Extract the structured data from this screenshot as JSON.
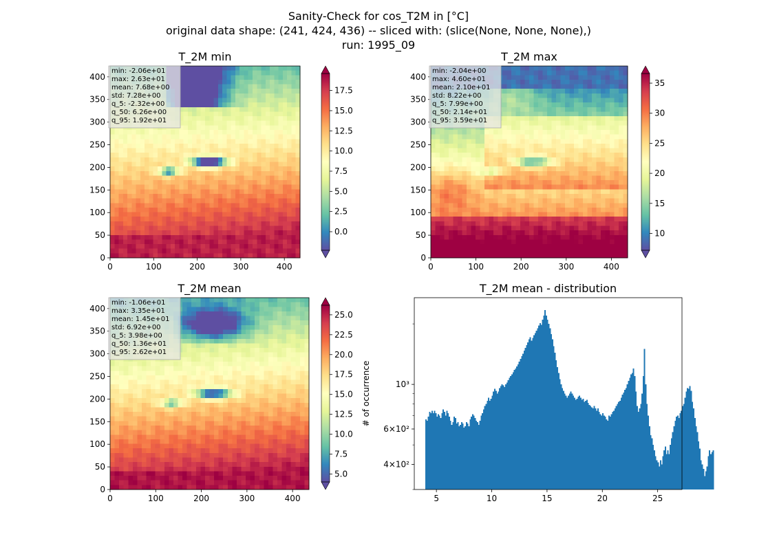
{
  "figure": {
    "title_lines": [
      "Sanity-Check for cos_T2M in [°C]",
      "original data shape: (241, 424, 436) -- sliced with: (slice(None, None, None),)",
      "run: 1995_09"
    ]
  },
  "colormap": {
    "name": "Spectral_r",
    "stops": [
      "#5e4fa2",
      "#3288bd",
      "#66c2a5",
      "#abdda4",
      "#e6f598",
      "#ffffbf",
      "#fee08b",
      "#fdae61",
      "#f46d43",
      "#d53e4f",
      "#9e0142"
    ]
  },
  "chart_data": [
    {
      "type": "heatmap",
      "title": "T_2M min",
      "xlim": [
        0,
        436
      ],
      "ylim": [
        0,
        424
      ],
      "xticks": [
        0,
        100,
        200,
        300,
        400
      ],
      "yticks": [
        0,
        50,
        100,
        150,
        200,
        250,
        300,
        350,
        400
      ],
      "colorbar": {
        "vmin": -2.3,
        "vmax": 19.6,
        "ticks": [
          0.0,
          2.5,
          5.0,
          7.5,
          10.0,
          12.5,
          15.0,
          17.5
        ],
        "tick_labels": [
          "0.0",
          "2.5",
          "5.0",
          "7.5",
          "10.0",
          "12.5",
          "15.0",
          "17.5"
        ]
      },
      "stats": [
        "min: -2.06e+01",
        "max: 2.63e+01",
        "mean: 7.68e+00",
        "std: 7.28e+00",
        "q_5: -2.32e+00",
        "q_50: 6.26e+00",
        "q_95: 1.92e+01"
      ]
    },
    {
      "type": "heatmap",
      "title": "T_2M max",
      "xlim": [
        0,
        436
      ],
      "ylim": [
        0,
        424
      ],
      "xticks": [
        0,
        100,
        200,
        300,
        400
      ],
      "yticks": [
        0,
        50,
        100,
        150,
        200,
        250,
        300,
        350,
        400
      ],
      "colorbar": {
        "vmin": 7.2,
        "vmax": 36.6,
        "ticks": [
          10,
          15,
          20,
          25,
          30,
          35
        ],
        "tick_labels": [
          "10",
          "15",
          "20",
          "25",
          "30",
          "35"
        ]
      },
      "stats": [
        "min: -2.04e+00",
        "max: 4.60e+01",
        "mean: 2.10e+01",
        "std: 8.22e+00",
        "q_5: 7.99e+00",
        "q_50: 2.14e+01",
        "q_95: 3.59e+01"
      ]
    },
    {
      "type": "heatmap",
      "title": "T_2M mean",
      "xlim": [
        0,
        436
      ],
      "ylim": [
        0,
        424
      ],
      "xticks": [
        0,
        100,
        200,
        300,
        400
      ],
      "yticks": [
        0,
        50,
        100,
        150,
        200,
        250,
        300,
        350,
        400
      ],
      "colorbar": {
        "vmin": 4.0,
        "vmax": 26.2,
        "ticks": [
          5.0,
          7.5,
          10.0,
          12.5,
          15.0,
          17.5,
          20.0,
          22.5,
          25.0
        ],
        "tick_labels": [
          "5.0",
          "7.5",
          "10.0",
          "12.5",
          "15.0",
          "17.5",
          "20.0",
          "22.5",
          "25.0"
        ]
      },
      "stats": [
        "min: -1.06e+01",
        "max: 3.35e+01",
        "mean: 1.45e+01",
        "std: 6.92e+00",
        "q_5: 3.98e+00",
        "q_50: 1.36e+01",
        "q_95: 2.62e+01"
      ]
    },
    {
      "type": "bar",
      "title": "T_2M mean - distribution",
      "ylabel": "# of occurrence",
      "log_y": true,
      "xlim": [
        3.0,
        27.2
      ],
      "ylim": [
        300,
        2700
      ],
      "xticks": [
        5,
        10,
        15,
        20,
        25
      ],
      "yticks": [
        400,
        600,
        1000
      ],
      "ytick_labels": [
        "4×10²",
        "6×10²",
        "10³"
      ],
      "bar_color": "#1f77b4",
      "x_start": 4.0,
      "bin_width": 0.111,
      "values": [
        670,
        660,
        690,
        730,
        720,
        740,
        720,
        740,
        720,
        690,
        710,
        700,
        680,
        720,
        750,
        730,
        700,
        740,
        720,
        690,
        660,
        630,
        650,
        690,
        680,
        640,
        650,
        620,
        630,
        650,
        640,
        610,
        620,
        650,
        640,
        620,
        670,
        690,
        710,
        700,
        680,
        660,
        650,
        630,
        660,
        700,
        720,
        750,
        780,
        800,
        830,
        860,
        830,
        850,
        880,
        920,
        950,
        930,
        900,
        920,
        960,
        980,
        1000,
        990,
        970,
        1000,
        1020,
        1050,
        1080,
        1100,
        1120,
        1150,
        1180,
        1200,
        1230,
        1260,
        1300,
        1340,
        1380,
        1420,
        1470,
        1520,
        1570,
        1620,
        1680,
        1720,
        1650,
        1700,
        1760,
        1800,
        1850,
        1900,
        1960,
        2020,
        1980,
        2100,
        2200,
        2340,
        2200,
        2100,
        2000,
        1900,
        1780,
        1680,
        1550,
        1440,
        1320,
        1220,
        1140,
        1060,
        1000,
        960,
        930,
        900,
        880,
        860,
        880,
        900,
        920,
        900,
        880,
        860,
        840,
        850,
        870,
        880,
        860,
        840,
        850,
        820,
        830,
        840,
        810,
        790,
        780,
        770,
        760,
        780,
        760,
        740,
        760,
        730,
        710,
        700,
        720,
        700,
        690,
        670,
        660,
        700,
        690,
        710,
        730,
        740,
        760,
        780,
        800,
        820,
        830,
        860,
        890,
        910,
        940,
        960,
        1000,
        1040,
        1080,
        1120,
        1140,
        1200,
        1100,
        920,
        780,
        730,
        760,
        800,
        900,
        1100,
        1500,
        1000,
        800,
        700,
        620,
        560,
        540,
        500,
        470,
        440,
        420,
        410,
        390,
        420,
        400,
        440,
        470,
        490,
        450,
        470,
        450,
        500,
        540,
        580,
        620,
        660,
        690,
        700,
        680,
        720,
        740,
        780,
        800,
        860,
        920,
        960,
        950,
        980,
        930,
        820,
        760,
        680,
        620,
        580,
        520,
        480,
        420,
        400,
        380,
        350,
        370,
        390,
        440,
        470,
        450,
        460,
        470
      ]
    }
  ]
}
